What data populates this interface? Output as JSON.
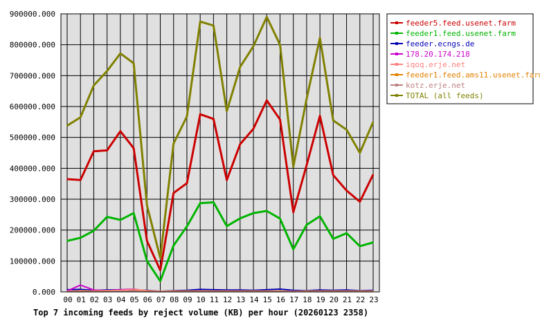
{
  "chart_data": {
    "type": "line",
    "title": "Top 7 incoming feeds by reject volume (KB) per hour (20260123 2358)",
    "x": [
      "00",
      "01",
      "02",
      "03",
      "04",
      "05",
      "06",
      "07",
      "08",
      "09",
      "10",
      "11",
      "12",
      "13",
      "14",
      "15",
      "16",
      "17",
      "18",
      "19",
      "20",
      "21",
      "22",
      "23"
    ],
    "ylim": [
      0,
      900000
    ],
    "yticks": [
      "0.000",
      "100000.000",
      "200000.000",
      "300000.000",
      "400000.000",
      "500000.000",
      "600000.000",
      "700000.000",
      "800000.000",
      "900000.000"
    ],
    "grid": true,
    "legend_position": "right",
    "series": [
      {
        "name": "feeder5.feed.usenet.farm",
        "color": "#cc0000",
        "width": 3,
        "values": [
          365000,
          362000,
          455000,
          458000,
          520000,
          465000,
          165000,
          70000,
          320000,
          352000,
          575000,
          560000,
          362000,
          478000,
          528000,
          620000,
          558000,
          258000,
          410000,
          570000,
          378000,
          328000,
          292000,
          380000
        ]
      },
      {
        "name": "feeder1.feed.usenet.farm",
        "color": "#00b400",
        "width": 3,
        "values": [
          165000,
          175000,
          198000,
          243000,
          233000,
          255000,
          100000,
          35000,
          150000,
          212000,
          287000,
          290000,
          213000,
          238000,
          255000,
          262000,
          237000,
          138000,
          217000,
          245000,
          172000,
          190000,
          148000,
          160000
        ]
      },
      {
        "name": "feeder.ecngs.de",
        "color": "#0000b4",
        "width": 2,
        "values": [
          7000,
          8000,
          5000,
          6000,
          7000,
          6000,
          5000,
          2000,
          4000,
          5000,
          8000,
          7000,
          6000,
          6000,
          5000,
          7000,
          9000,
          5000,
          4000,
          6000,
          5000,
          6000,
          4000,
          5000
        ]
      },
      {
        "name": "178.20.174.218",
        "color": "#cc00cc",
        "width": 2,
        "values": [
          3000,
          22000,
          6000,
          4000,
          7000,
          9000,
          3000,
          1000,
          3000,
          2000,
          3000,
          2000,
          3000,
          2000,
          2000,
          2000,
          2000,
          1000,
          2000,
          2000,
          2000,
          2000,
          2000,
          2000
        ]
      },
      {
        "name": "iqoq.erje.net",
        "color": "#ff8080",
        "width": 2,
        "values": [
          2000,
          4000,
          3000,
          4000,
          5000,
          8000,
          4000,
          2000,
          3000,
          3000,
          3000,
          3000,
          3000,
          3000,
          3000,
          3000,
          3000,
          2000,
          3000,
          3000,
          3000,
          3000,
          3000,
          3000
        ]
      },
      {
        "name": "feeder1.feed.ams11.usenet.farm",
        "color": "#e08000",
        "width": 2,
        "values": [
          1000,
          2000,
          2000,
          2000,
          2000,
          3000,
          2000,
          1000,
          2000,
          2000,
          2000,
          2000,
          2000,
          2000,
          2000,
          2000,
          2000,
          1000,
          2000,
          2000,
          2000,
          2000,
          2000,
          2000
        ]
      },
      {
        "name": "kotz.erje.net",
        "color": "#c08080",
        "width": 2,
        "values": [
          1000,
          1000,
          1000,
          1000,
          2000,
          2000,
          1000,
          1000,
          1000,
          1000,
          1000,
          1000,
          1000,
          1000,
          1000,
          1000,
          1000,
          1000,
          1000,
          1000,
          1000,
          1000,
          1000,
          1000
        ]
      },
      {
        "name": "TOTAL (all feeds)",
        "color": "#808000",
        "width": 3,
        "values": [
          538000,
          565000,
          668000,
          715000,
          772000,
          740000,
          280000,
          110000,
          480000,
          568000,
          875000,
          862000,
          585000,
          728000,
          795000,
          890000,
          800000,
          405000,
          625000,
          822000,
          555000,
          525000,
          450000,
          550000
        ]
      }
    ]
  }
}
